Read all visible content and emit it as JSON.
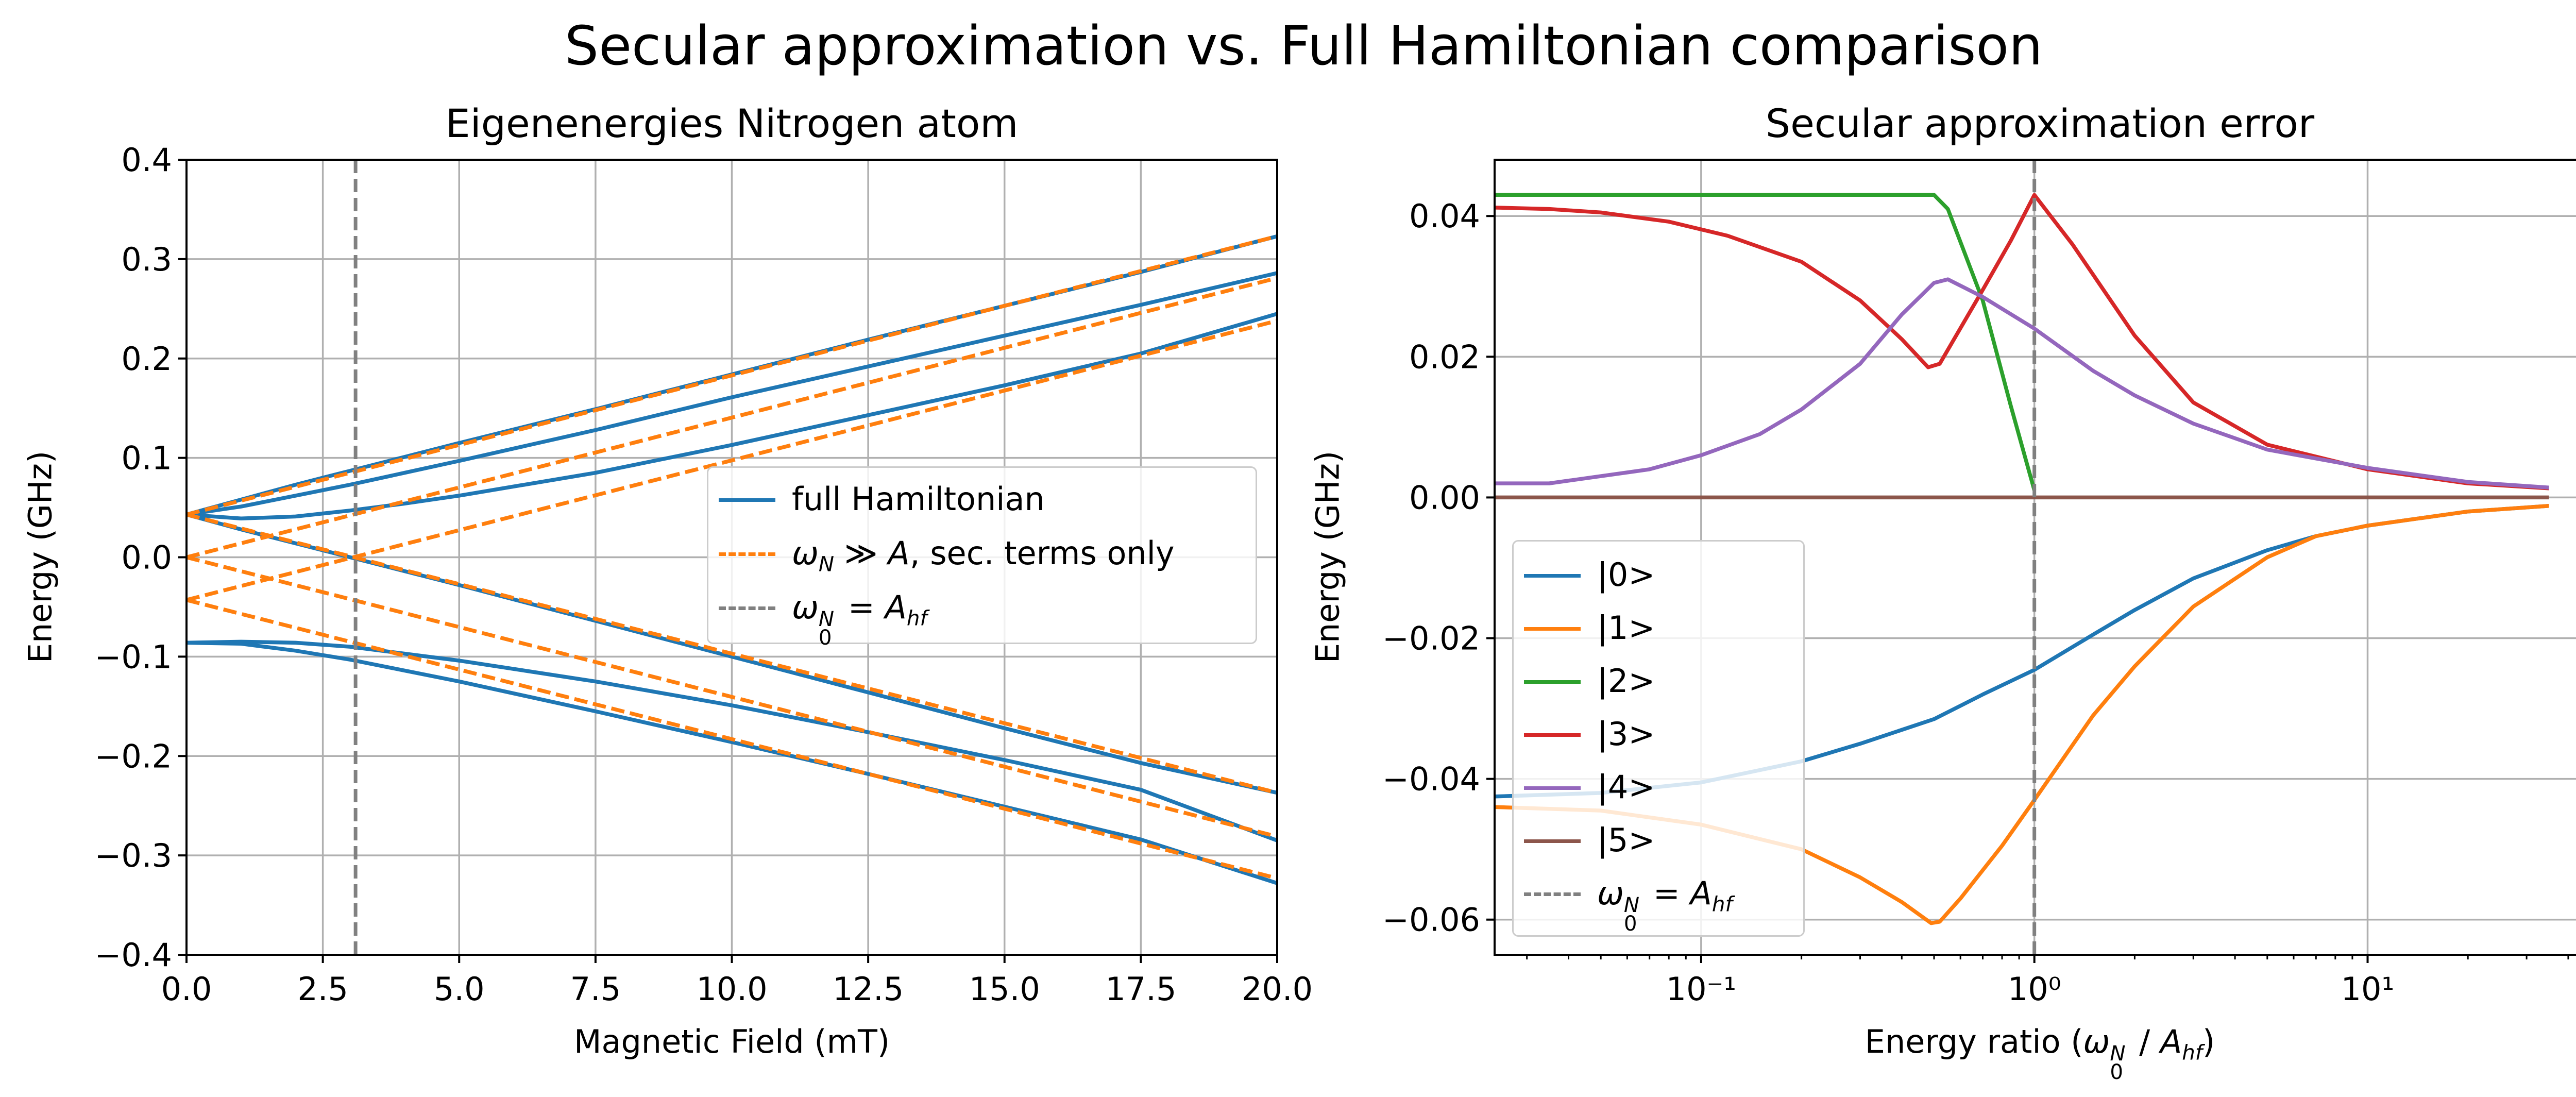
{
  "figure_title": "Secular approximation vs. Full Hamiltonian comparison",
  "colors": {
    "blue": "#1f77b4",
    "orange": "#ff7f0e",
    "green": "#2ca02c",
    "red": "#d62728",
    "purple": "#9467bd",
    "brown": "#8c564b",
    "gray": "#808080",
    "grid": "#b0b0b0"
  },
  "chart_data": [
    {
      "type": "line",
      "title": "Eigenenergies Nitrogen atom",
      "xlabel": "Magnetic Field (mT)",
      "ylabel": "Energy (GHz)",
      "xlim": [
        0,
        20
      ],
      "ylim": [
        -0.4,
        0.4
      ],
      "xticks": [
        0,
        2.5,
        5,
        7.5,
        10,
        12.5,
        15,
        17.5,
        20
      ],
      "xtick_labels": [
        "0.0",
        "2.5",
        "5.0",
        "7.5",
        "10.0",
        "12.5",
        "15.0",
        "17.5",
        "20.0"
      ],
      "yticks": [
        -0.4,
        -0.3,
        -0.2,
        -0.1,
        0.0,
        0.1,
        0.2,
        0.3,
        0.4
      ],
      "ytick_labels": [
        "−0.4",
        "−0.3",
        "−0.2",
        "−0.1",
        "0.0",
        "0.1",
        "0.2",
        "0.3",
        "0.4"
      ],
      "grid": true,
      "legend": {
        "position": "center-right",
        "entries": [
          "full Hamiltonian",
          "ωN ≫ A, sec. terms only",
          "ω0N = Ahf"
        ]
      },
      "series": [
        {
          "name": "full Hamiltonian",
          "color": "blue",
          "style": "solid",
          "x": [
            0,
            1,
            2,
            3,
            4,
            5,
            7.5,
            10,
            12.5,
            15,
            17.5,
            20
          ],
          "curves": [
            [
              0.043,
              0.058,
              0.073,
              0.087,
              0.101,
              0.115,
              0.149,
              0.184,
              0.219,
              0.253,
              0.287,
              0.323
            ],
            [
              0.043,
              0.051,
              0.062,
              0.073,
              0.085,
              0.097,
              0.128,
              0.161,
              0.192,
              0.223,
              0.254,
              0.286
            ],
            [
              0.043,
              0.039,
              0.041,
              0.047,
              0.054,
              0.062,
              0.085,
              0.113,
              0.143,
              0.173,
              0.205,
              0.245
            ],
            [
              0.043,
              0.028,
              0.014,
              0.0,
              -0.014,
              -0.028,
              -0.064,
              -0.1,
              -0.136,
              -0.172,
              -0.207,
              -0.237
            ],
            [
              -0.086,
              -0.085,
              -0.086,
              -0.09,
              -0.097,
              -0.104,
              -0.125,
              -0.149,
              -0.176,
              -0.204,
              -0.234,
              -0.285
            ],
            [
              -0.086,
              -0.087,
              -0.094,
              -0.103,
              -0.114,
              -0.125,
              -0.155,
              -0.186,
              -0.218,
              -0.251,
              -0.284,
              -0.328
            ]
          ]
        },
        {
          "name": "ωN ≫ A, sec. terms only",
          "color": "orange",
          "style": "dashed",
          "x": [
            0,
            20
          ],
          "curves": [
            [
              0.043,
              0.323
            ],
            [
              0.0,
              0.281
            ],
            [
              -0.043,
              0.238
            ],
            [
              0.043,
              -0.237
            ],
            [
              0.0,
              -0.281
            ],
            [
              -0.043,
              -0.323
            ]
          ]
        },
        {
          "name": "ω0N = Ahf",
          "color": "gray",
          "style": "dashed",
          "vline_x": 3.1
        }
      ]
    },
    {
      "type": "line",
      "title": "Secular approximation error",
      "xlabel": "Energy ratio (ω0N / Ahf)",
      "ylabel": "Energy (GHz)",
      "xscale": "log",
      "xlim": [
        0.024,
        45
      ],
      "ylim": [
        -0.065,
        0.048
      ],
      "xticks": [
        0.1,
        1,
        10
      ],
      "xtick_labels": [
        "10⁻¹",
        "10⁰",
        "10¹"
      ],
      "yticks": [
        -0.06,
        -0.04,
        -0.02,
        0.0,
        0.02,
        0.04
      ],
      "ytick_labels": [
        "−0.06",
        "−0.04",
        "−0.02",
        "0.00",
        "0.02",
        "0.04"
      ],
      "grid": true,
      "legend": {
        "position": "lower-left",
        "entries": [
          "|0>",
          "|1>",
          "|2>",
          "|3>",
          "|4>",
          "|5>",
          "ω0N = Ahf"
        ]
      },
      "series": [
        {
          "name": "|0>",
          "color": "blue",
          "x": [
            0.024,
            0.05,
            0.1,
            0.2,
            0.3,
            0.5,
            0.7,
            1,
            1.5,
            2,
            3,
            5,
            7,
            10,
            20,
            35
          ],
          "y": [
            -0.0425,
            -0.042,
            -0.0405,
            -0.0375,
            -0.035,
            -0.0315,
            -0.028,
            -0.0245,
            -0.0195,
            -0.016,
            -0.0115,
            -0.0075,
            -0.0055,
            -0.004,
            -0.002,
            -0.0012
          ]
        },
        {
          "name": "|1>",
          "color": "orange",
          "x": [
            0.024,
            0.05,
            0.1,
            0.2,
            0.3,
            0.4,
            0.49,
            0.52,
            0.6,
            0.8,
            1,
            1.5,
            2,
            3,
            5,
            7,
            10,
            20,
            35
          ],
          "y": [
            -0.044,
            -0.0445,
            -0.0465,
            -0.05,
            -0.054,
            -0.0575,
            -0.0605,
            -0.0603,
            -0.057,
            -0.0495,
            -0.043,
            -0.031,
            -0.024,
            -0.0155,
            -0.0085,
            -0.0055,
            -0.004,
            -0.002,
            -0.0012
          ]
        },
        {
          "name": "|2>",
          "color": "green",
          "x": [
            0.024,
            0.1,
            0.3,
            0.45,
            0.5,
            0.55,
            0.7,
            0.85,
            1
          ],
          "y": [
            0.043,
            0.043,
            0.043,
            0.043,
            0.043,
            0.041,
            0.028,
            0.013,
            0.001
          ]
        },
        {
          "name": "|3>",
          "color": "red",
          "x": [
            0.024,
            0.035,
            0.05,
            0.08,
            0.12,
            0.2,
            0.3,
            0.4,
            0.48,
            0.52,
            0.7,
            0.85,
            1,
            1.3,
            2,
            3,
            5,
            10,
            20,
            35
          ],
          "y": [
            0.0412,
            0.041,
            0.0405,
            0.0392,
            0.0372,
            0.0335,
            0.028,
            0.0225,
            0.0185,
            0.019,
            0.0295,
            0.0365,
            0.043,
            0.036,
            0.023,
            0.0135,
            0.0075,
            0.004,
            0.002,
            0.0013
          ]
        },
        {
          "name": "|4>",
          "color": "purple",
          "x": [
            0.024,
            0.035,
            0.07,
            0.1,
            0.15,
            0.2,
            0.3,
            0.4,
            0.5,
            0.55,
            0.7,
            1,
            1.5,
            2,
            3,
            5,
            10,
            20,
            35
          ],
          "y": [
            0.002,
            0.002,
            0.004,
            0.006,
            0.009,
            0.0125,
            0.019,
            0.026,
            0.0305,
            0.031,
            0.0285,
            0.024,
            0.018,
            0.0145,
            0.0105,
            0.0068,
            0.0042,
            0.0022,
            0.0014
          ]
        },
        {
          "name": "|5>",
          "color": "brown",
          "x": [
            0.024,
            35
          ],
          "y": [
            0.0,
            0.0
          ]
        },
        {
          "name": "ω0N = Ahf",
          "color": "gray",
          "style": "dashed",
          "vline_x": 1
        }
      ]
    }
  ]
}
